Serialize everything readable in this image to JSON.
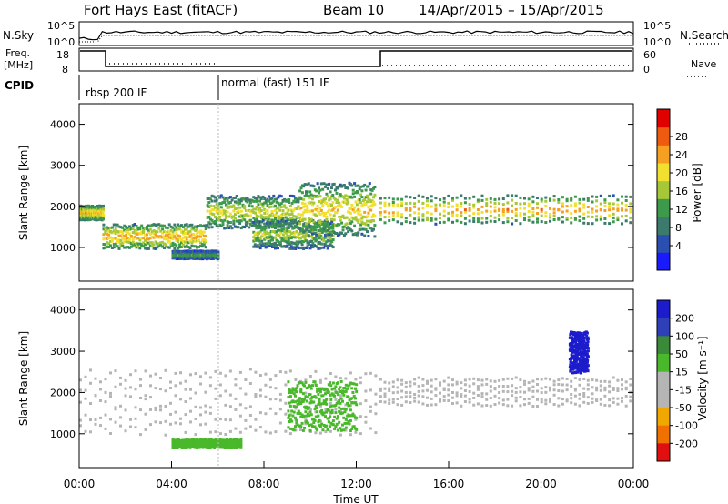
{
  "header": {
    "title": "Fort Hays East (fitACF)",
    "beam": "Beam 10",
    "dates": "14/Apr/2015 – 15/Apr/2015"
  },
  "strips": {
    "nsky_label": "N.Sky",
    "nsearch_label": "N.Search",
    "noise_ticks": [
      "10^5",
      "10^0"
    ],
    "noise_ticks_right": [
      "10^5",
      "10^0"
    ],
    "freq_label": "Freq.",
    "freq_unit": "[MHz]",
    "freq_ticks": [
      "18",
      "8"
    ],
    "nave_label": "Nave",
    "nave_ticks": [
      "60",
      "0"
    ],
    "cpid_label": "CPID",
    "cpid_segments": [
      "rbsp 200 IF",
      "normal (fast) 151 IF"
    ]
  },
  "panels": {
    "power": {
      "ylabel": "Slant Range [km]",
      "yticks": [
        "4000",
        "3000",
        "2000",
        "1000"
      ],
      "colorbar_label": "Power [dB]",
      "colorbar_ticks": [
        "28",
        "24",
        "20",
        "16",
        "12",
        "8",
        "4"
      ]
    },
    "velocity": {
      "ylabel": "Slant Range [km]",
      "yticks": [
        "4000",
        "3000",
        "2000",
        "1000"
      ],
      "colorbar_label": "Velocity [m s⁻¹]",
      "colorbar_ticks": [
        "200",
        "100",
        "50",
        "15",
        "-15",
        "-50",
        "-100",
        "-200"
      ]
    }
  },
  "xaxis": {
    "label": "Time UT",
    "ticks": [
      "00:00",
      "04:00",
      "08:00",
      "12:00",
      "16:00",
      "20:00",
      "00:00"
    ]
  },
  "chart_data": [
    {
      "type": "heatmap",
      "title": "Fort Hays East (fitACF) Beam 10 14/Apr/2015 – 15/Apr/2015",
      "xlabel": "Time UT",
      "ylabel": "Slant Range [km]",
      "xlim_hours": [
        0,
        24
      ],
      "ylim_km": [
        180,
        4500
      ],
      "colorbar": {
        "label": "Power [dB]",
        "range": [
          0,
          30
        ],
        "ticks": [
          4,
          8,
          12,
          16,
          20,
          24,
          28
        ]
      },
      "echo_bands": [
        {
          "t": [
            0,
            1.0
          ],
          "range_km": [
            1700,
            2050
          ],
          "peak_db": 22
        },
        {
          "t": [
            1.0,
            5.5
          ],
          "range_km": [
            1000,
            1600
          ],
          "peak_db": 22
        },
        {
          "t": [
            5.5,
            9.5
          ],
          "range_km": [
            1500,
            2300
          ],
          "peak_db": 18
        },
        {
          "t": [
            4.0,
            6.0
          ],
          "range_km": [
            750,
            950
          ],
          "peak_db": 12
        },
        {
          "t": [
            7.5,
            11.0
          ],
          "range_km": [
            1000,
            1700
          ],
          "peak_db": 16
        },
        {
          "t": [
            9.5,
            12.8
          ],
          "range_km": [
            1300,
            2600
          ],
          "peak_db": 20
        },
        {
          "t": [
            13.0,
            24.0
          ],
          "range_km": [
            1600,
            2300
          ],
          "peak_db": 22
        }
      ]
    },
    {
      "type": "heatmap",
      "title": "",
      "xlabel": "Time UT",
      "ylabel": "Slant Range [km]",
      "xlim_hours": [
        0,
        24
      ],
      "ylim_km": [
        180,
        4500
      ],
      "colorbar": {
        "label": "Velocity [m s⁻¹]",
        "ticks": [
          200,
          100,
          50,
          15,
          -15,
          -50,
          -100,
          -200
        ]
      },
      "echo_bands": [
        {
          "t": [
            0,
            13.0
          ],
          "range_km": [
            1000,
            2600
          ],
          "velocity_ms": 0
        },
        {
          "t": [
            4.0,
            7.0
          ],
          "range_km": [
            700,
            900
          ],
          "velocity_ms": 40
        },
        {
          "t": [
            9.0,
            12.0
          ],
          "range_km": [
            1100,
            2300
          ],
          "velocity_ms": 40
        },
        {
          "t": [
            13.0,
            24.0
          ],
          "range_km": [
            1700,
            2400
          ],
          "velocity_ms": 0
        },
        {
          "t": [
            21.2,
            22.0
          ],
          "range_km": [
            2500,
            3500
          ],
          "velocity_ms": 180
        }
      ]
    }
  ]
}
